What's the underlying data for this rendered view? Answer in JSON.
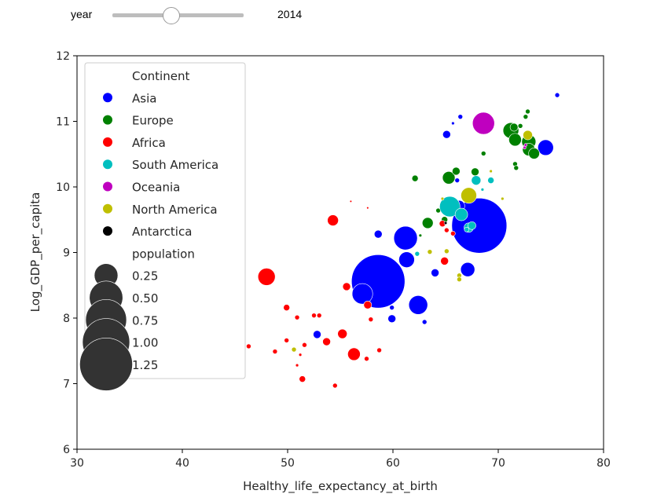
{
  "widget": {
    "label": "year",
    "value": "2014",
    "slider_fraction": 0.45
  },
  "chart_data": {
    "type": "scatter",
    "xlabel": "Healthy_life_expectancy_at_birth",
    "ylabel": "Log_GDP_per_capita",
    "xlim": [
      30,
      80
    ],
    "ylim": [
      6,
      12
    ],
    "xticks": [
      "30",
      "40",
      "50",
      "60",
      "70",
      "80"
    ],
    "yticks": [
      "6",
      "7",
      "8",
      "9",
      "10",
      "11",
      "12"
    ],
    "grid": false,
    "legend": {
      "placement": "upper-left",
      "hue_title": "Continent",
      "size_title": "population",
      "size_entries": [
        "0.25",
        "0.50",
        "0.75",
        "1.00",
        "1.25"
      ]
    },
    "series": [
      {
        "name": "Asia",
        "color": "#0000ff",
        "points": [
          [
            68.2,
            9.41,
            1.36
          ],
          [
            58.6,
            8.56,
            1.28
          ],
          [
            61.2,
            9.22,
            0.25
          ],
          [
            57.1,
            8.37,
            0.19
          ],
          [
            62.4,
            8.2,
            0.16
          ],
          [
            61.3,
            8.89,
            0.11
          ],
          [
            67.1,
            8.74,
            0.09
          ],
          [
            74.5,
            10.6,
            0.11
          ],
          [
            64.0,
            8.69,
            0.028
          ],
          [
            58.6,
            9.28,
            0.028
          ],
          [
            59.9,
            7.99,
            0.028
          ],
          [
            59.9,
            8.16,
            0.01
          ],
          [
            63.0,
            7.94,
            0.01
          ],
          [
            52.8,
            7.75,
            0.028
          ],
          [
            65.1,
            10.8,
            0.028
          ],
          [
            66.4,
            11.07,
            0.01
          ],
          [
            65.7,
            10.97,
            0.004
          ],
          [
            75.6,
            11.4,
            0.01
          ],
          [
            66.3,
            9.71,
            0.054
          ],
          [
            66.1,
            10.1,
            0.01
          ]
        ]
      },
      {
        "name": "Europe",
        "color": "#008000",
        "points": [
          [
            71.2,
            10.86,
            0.111
          ],
          [
            71.6,
            10.72,
            0.071
          ],
          [
            72.9,
            10.69,
            0.09
          ],
          [
            72.9,
            10.57,
            0.071
          ],
          [
            73.4,
            10.51,
            0.054
          ],
          [
            63.3,
            9.45,
            0.054
          ],
          [
            65.3,
            10.14,
            0.071
          ],
          [
            67.8,
            10.23,
            0.028
          ],
          [
            62.1,
            10.13,
            0.018
          ],
          [
            66.0,
            10.24,
            0.028
          ],
          [
            71.5,
            10.91,
            0.028
          ],
          [
            72.8,
            11.15,
            0.01
          ],
          [
            72.6,
            11.07,
            0.01
          ],
          [
            72.1,
            10.93,
            0.01
          ],
          [
            71.6,
            10.35,
            0.01
          ],
          [
            71.7,
            10.29,
            0.01
          ],
          [
            64.9,
            9.5,
            0.018
          ],
          [
            64.3,
            9.64,
            0.01
          ],
          [
            62.6,
            9.26,
            0.004
          ],
          [
            68.6,
            10.51,
            0.01
          ]
        ]
      },
      {
        "name": "Africa",
        "color": "#ff0000",
        "points": [
          [
            48.0,
            8.63,
            0.134
          ],
          [
            54.3,
            9.49,
            0.054
          ],
          [
            56.3,
            7.45,
            0.071
          ],
          [
            55.2,
            7.76,
            0.04
          ],
          [
            53.7,
            7.64,
            0.028
          ],
          [
            51.4,
            7.07,
            0.018
          ],
          [
            55.6,
            8.48,
            0.028
          ],
          [
            57.6,
            8.2,
            0.028
          ],
          [
            64.9,
            8.87,
            0.028
          ],
          [
            65.1,
            9.34,
            0.01
          ],
          [
            49.9,
            8.16,
            0.018
          ],
          [
            48.8,
            7.49,
            0.01
          ],
          [
            50.9,
            8.01,
            0.01
          ],
          [
            53.0,
            8.04,
            0.01
          ],
          [
            52.5,
            8.04,
            0.01
          ],
          [
            51.6,
            7.59,
            0.01
          ],
          [
            46.3,
            7.57,
            0.01
          ],
          [
            54.5,
            6.97,
            0.01
          ],
          [
            57.5,
            7.38,
            0.01
          ],
          [
            58.7,
            7.51,
            0.01
          ],
          [
            57.9,
            7.98,
            0.01
          ],
          [
            49.9,
            7.66,
            0.01
          ],
          [
            50.9,
            7.28,
            0.004
          ],
          [
            51.2,
            7.44,
            0.004
          ],
          [
            56.0,
            9.78,
            0.002
          ],
          [
            57.6,
            9.68,
            0.002
          ],
          [
            65.7,
            9.29,
            0.01
          ],
          [
            64.7,
            9.44,
            0.018
          ]
        ]
      },
      {
        "name": "South America",
        "color": "#00bfbf",
        "points": [
          [
            65.4,
            9.7,
            0.188
          ],
          [
            66.5,
            9.58,
            0.071
          ],
          [
            67.2,
            9.38,
            0.04
          ],
          [
            67.5,
            9.41,
            0.028
          ],
          [
            67.9,
            10.1,
            0.04
          ],
          [
            69.3,
            10.1,
            0.018
          ],
          [
            62.3,
            8.98,
            0.01
          ],
          [
            67.0,
            9.35,
            0.01
          ],
          [
            68.5,
            9.96,
            0.004
          ]
        ]
      },
      {
        "name": "Oceania",
        "color": "#bf00bf",
        "points": [
          [
            68.6,
            10.97,
            0.218
          ],
          [
            72.5,
            10.6,
            0.004
          ],
          [
            72.6,
            10.64,
            0.004
          ]
        ]
      },
      {
        "name": "North America",
        "color": "#bfbf00",
        "points": [
          [
            67.2,
            9.87,
            0.111
          ],
          [
            72.8,
            10.79,
            0.04
          ],
          [
            63.5,
            9.01,
            0.01
          ],
          [
            65.1,
            9.02,
            0.01
          ],
          [
            66.3,
            8.65,
            0.01
          ],
          [
            66.3,
            8.59,
            0.01
          ],
          [
            50.6,
            7.52,
            0.01
          ],
          [
            64.7,
            9.82,
            0.004
          ],
          [
            70.4,
            9.82,
            0.004
          ],
          [
            69.3,
            10.24,
            0.004
          ]
        ]
      },
      {
        "name": "Antarctica",
        "color": "#000000",
        "points": [
          [
            65.0,
            9.45,
            0.004
          ]
        ]
      }
    ]
  }
}
